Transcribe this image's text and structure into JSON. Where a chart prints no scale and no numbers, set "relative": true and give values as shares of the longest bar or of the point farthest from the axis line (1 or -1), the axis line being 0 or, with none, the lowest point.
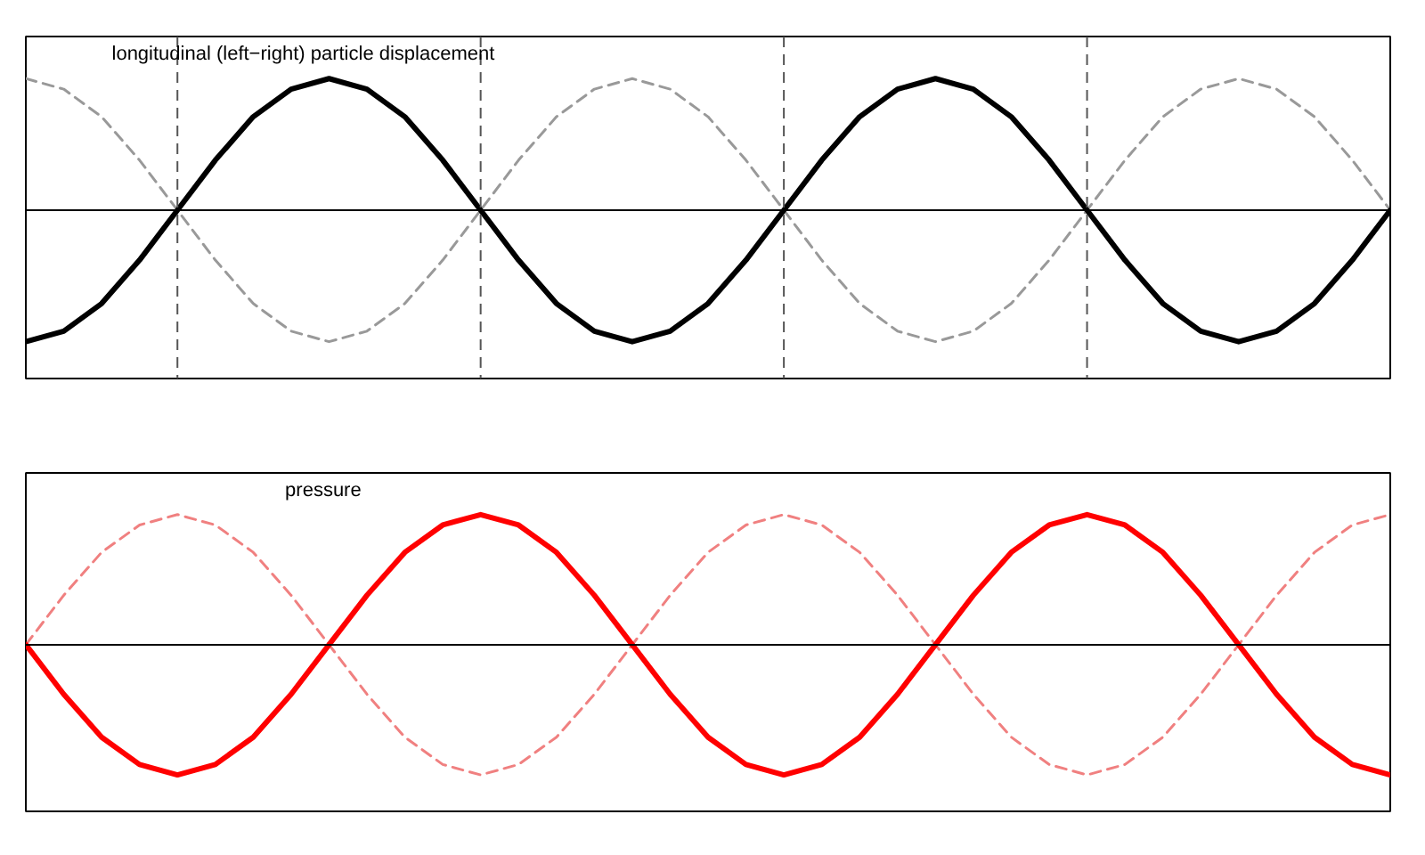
{
  "chart_data": [
    {
      "type": "line",
      "relative": true,
      "annotations": [
        "longitudinal (left−right) particle displacement"
      ],
      "categories": [
        null,
        null,
        null,
        null,
        null,
        null,
        null,
        null,
        null,
        null,
        null,
        null,
        null,
        null,
        null,
        null,
        null,
        null,
        null,
        null,
        null,
        null,
        null,
        null,
        null,
        null,
        null,
        null,
        null,
        null,
        null,
        null,
        null,
        null,
        null,
        null,
        null
      ],
      "grid": "x",
      "series": [
        {
          "color": "#999999",
          "line_style": "dashed",
          "values": [
            1,
            0.92,
            0.71,
            0.38,
            0,
            -0.38,
            -0.71,
            -0.92,
            -1,
            -0.92,
            -0.71,
            -0.38,
            0,
            0.38,
            0.71,
            0.92,
            1,
            0.92,
            0.71,
            0.38,
            0,
            -0.38,
            -0.71,
            -0.92,
            -1,
            -0.92,
            -0.71,
            -0.38,
            0,
            0.38,
            0.71,
            0.92,
            1,
            0.92,
            0.71,
            0.38,
            0
          ]
        },
        {
          "color": "#000000",
          "line_style": "solid",
          "values": [
            -1,
            -0.92,
            -0.71,
            -0.38,
            0,
            0.38,
            0.71,
            0.92,
            1,
            0.92,
            0.71,
            0.38,
            0,
            -0.38,
            -0.71,
            -0.92,
            -1,
            -0.92,
            -0.71,
            -0.38,
            0,
            0.38,
            0.71,
            0.92,
            1,
            0.92,
            0.71,
            0.38,
            0,
            -0.38,
            -0.71,
            -0.92,
            -1,
            -0.92,
            -0.71,
            -0.38,
            0
          ]
        }
      ]
    },
    {
      "type": "line",
      "relative": true,
      "annotations": [
        "pressure"
      ],
      "categories": [
        null,
        null,
        null,
        null,
        null,
        null,
        null,
        null,
        null,
        null,
        null,
        null,
        null,
        null,
        null,
        null,
        null,
        null,
        null,
        null,
        null,
        null,
        null,
        null,
        null,
        null,
        null,
        null,
        null,
        null,
        null,
        null,
        null,
        null,
        null,
        null,
        null
      ],
      "series": [
        {
          "color": "#f08080",
          "line_style": "dashed",
          "values": [
            0,
            0.38,
            0.71,
            0.92,
            1,
            0.92,
            0.71,
            0.38,
            0,
            -0.38,
            -0.71,
            -0.92,
            -1,
            -0.92,
            -0.71,
            -0.38,
            0,
            0.38,
            0.71,
            0.92,
            1,
            0.92,
            0.71,
            0.38,
            0,
            -0.38,
            -0.71,
            -0.92,
            -1,
            -0.92,
            -0.71,
            -0.38,
            0,
            0.38,
            0.71,
            0.92,
            1
          ]
        },
        {
          "color": "#ff0000",
          "line_style": "solid",
          "values": [
            0,
            -0.38,
            -0.71,
            -0.92,
            -1,
            -0.92,
            -0.71,
            -0.38,
            0,
            0.38,
            0.71,
            0.92,
            1,
            0.92,
            0.71,
            0.38,
            0,
            -0.38,
            -0.71,
            -0.92,
            -1,
            -0.92,
            -0.71,
            -0.38,
            0,
            0.38,
            0.71,
            0.92,
            1,
            0.92,
            0.71,
            0.38,
            0,
            -0.38,
            -0.71,
            -0.92,
            -1
          ]
        }
      ]
    }
  ]
}
